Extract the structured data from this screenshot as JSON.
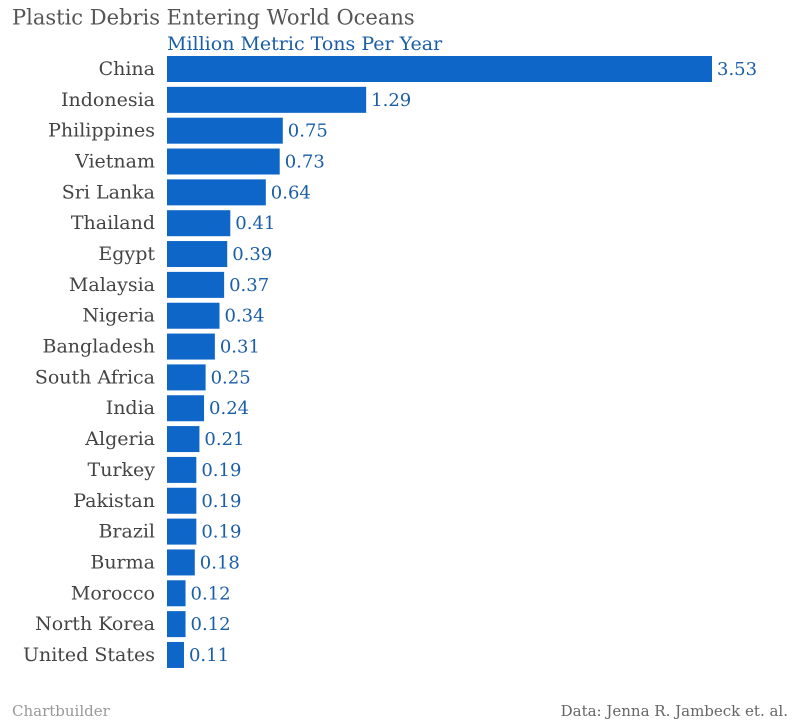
{
  "chart_data": {
    "type": "bar",
    "orientation": "horizontal",
    "title": "Plastic Debris Entering World Oceans",
    "subtitle": "Million Metric Tons Per Year",
    "categories": [
      "China",
      "Indonesia",
      "Philippines",
      "Vietnam",
      "Sri Lanka",
      "Thailand",
      "Egypt",
      "Malaysia",
      "Nigeria",
      "Bangladesh",
      "South Africa",
      "India",
      "Algeria",
      "Turkey",
      "Pakistan",
      "Brazil",
      "Burma",
      "Morocco",
      "North Korea",
      "United States"
    ],
    "values": [
      3.53,
      1.29,
      0.75,
      0.73,
      0.64,
      0.41,
      0.39,
      0.37,
      0.34,
      0.31,
      0.25,
      0.24,
      0.21,
      0.19,
      0.19,
      0.19,
      0.18,
      0.12,
      0.12,
      0.11
    ],
    "color": "#0e66c8",
    "credit": "Chartbuilder",
    "source": "Data: Jenna R. Jambeck et. al."
  }
}
